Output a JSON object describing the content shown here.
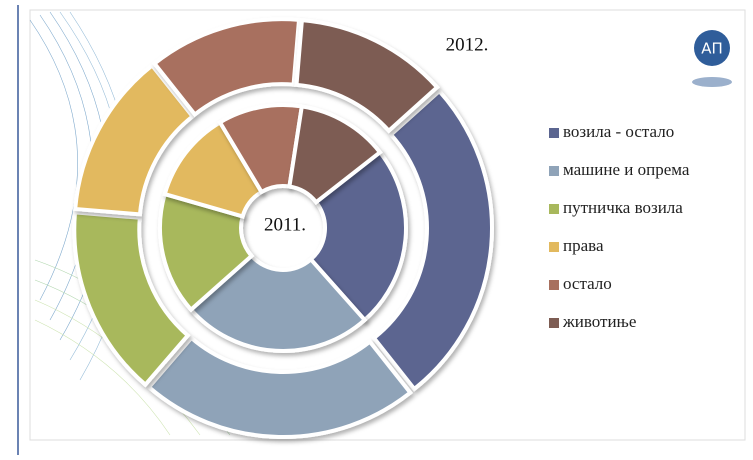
{
  "chart_data": {
    "type": "donut",
    "categories": [
      "возила - остало",
      "машине и опрема",
      "путничка возила",
      "права",
      "остало",
      "животиње"
    ],
    "colors": [
      "#5b6590",
      "#8fa3b8",
      "#a8b85c",
      "#e2b95e",
      "#a8705e",
      "#7d5c53"
    ],
    "series": [
      {
        "name": "2011.",
        "values": [
          24,
          25,
          16,
          12,
          11,
          12
        ]
      },
      {
        "name": "2012.",
        "values": [
          26,
          22,
          15,
          13,
          12,
          12
        ]
      }
    ]
  }
}
